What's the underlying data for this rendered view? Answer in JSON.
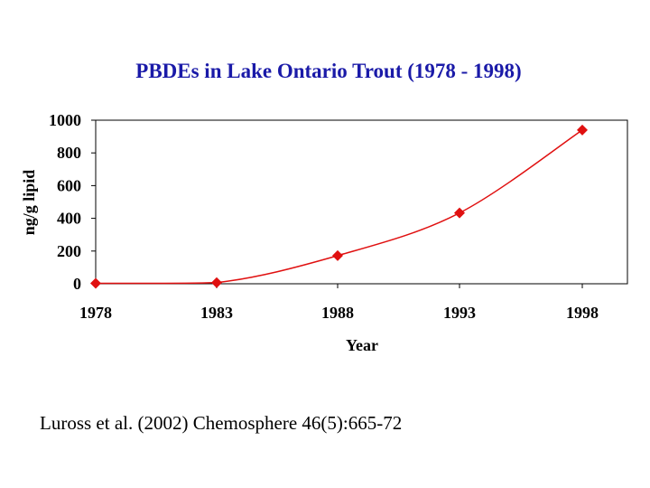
{
  "chart_data": {
    "type": "line",
    "title": "PBDEs in Lake Ontario Trout (1978 - 1998)",
    "xlabel": "Year",
    "ylabel": "ng/g lipid",
    "categories": [
      "1978",
      "1983",
      "1988",
      "1993",
      "1998"
    ],
    "series": [
      {
        "values": [
          3,
          7,
          172,
          433,
          940
        ]
      }
    ],
    "ylim": [
      0,
      1000
    ],
    "yticks": [
      "0",
      "200",
      "400",
      "600",
      "800",
      "1000"
    ],
    "grid": false,
    "legend": "none",
    "colors": {
      "title": "#1a1aa8",
      "series": "#e01010",
      "marker": "#e01010",
      "axis": "#000000"
    }
  },
  "caption": "Luross et al. (2002) Chemosphere 46(5):665-72"
}
